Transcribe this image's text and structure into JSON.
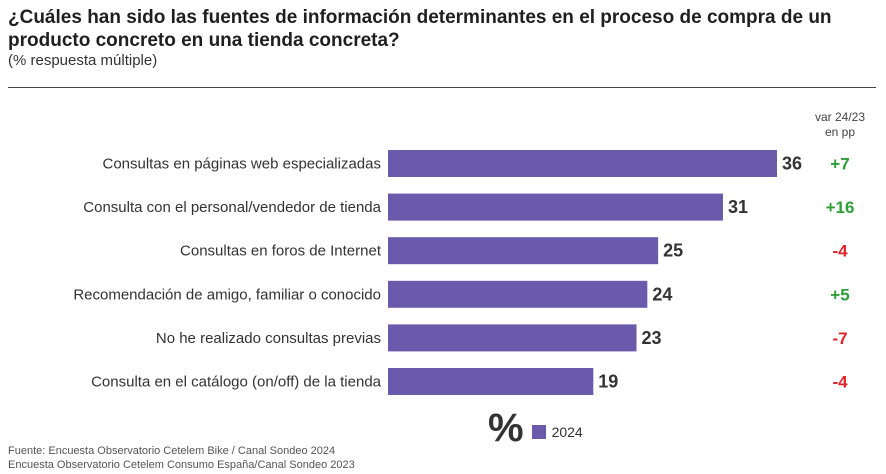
{
  "title": "¿Cuáles han sido las fuentes de información determinantes en el proceso de compra de un producto concreto en una tienda concreta?",
  "subtitle": "(% respuesta múltiple)",
  "var_header": {
    "line1": "var 24/23",
    "line2": "en pp"
  },
  "legend": {
    "symbol": "%",
    "label": "2024"
  },
  "source": {
    "line1": "Fuente: Encuesta Observatorio Cetelem Bike / Canal Sondeo 2024",
    "line2": "Encuesta Observatorio Cetelem Consumo España/Canal Sondeo 2023"
  },
  "colors": {
    "bar": "#6a5aab",
    "positive": "#2e9e3a",
    "negative": "#e0222b",
    "label": "#333333"
  },
  "chart_data": {
    "type": "bar",
    "orientation": "horizontal",
    "categories": [
      "Consultas en páginas web especializadas",
      "Consulta con el personal/vendedor de tienda",
      "Consultas en foros de Internet",
      "Recomendación de amigo, familiar o conocido",
      "No he realizado consultas previas",
      "Consulta en el catálogo (on/off) de la tienda"
    ],
    "series": [
      {
        "name": "2024",
        "values": [
          36,
          31,
          25,
          24,
          23,
          19
        ]
      }
    ],
    "variation_labels": [
      "+7",
      "+16",
      "-4",
      "+5",
      "-7",
      "-4"
    ],
    "xlim": [
      0,
      36
    ],
    "grid": false,
    "legend_position": "bottom"
  }
}
